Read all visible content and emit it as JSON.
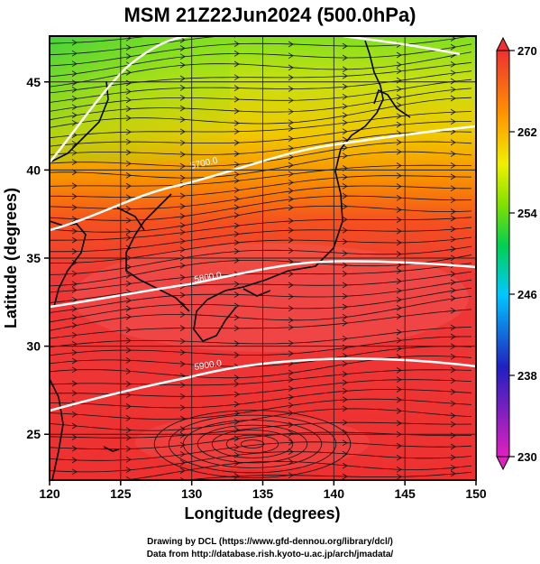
{
  "title": "MSM 21Z22Jun2024 (500.0hPa)",
  "x_axis": {
    "label": "Longitude (degrees)",
    "ticks": [
      "120",
      "125",
      "130",
      "135",
      "140",
      "145",
      "150"
    ],
    "range": [
      120,
      150
    ]
  },
  "y_axis": {
    "label": "Latitude  (degrees)",
    "ticks": [
      "25",
      "30",
      "35",
      "40",
      "45"
    ],
    "range": [
      22.4,
      47.6
    ]
  },
  "colorbar": {
    "ticks": [
      "270",
      "262",
      "254",
      "246",
      "238",
      "230"
    ],
    "range": [
      230,
      270
    ],
    "colors": [
      "#e020c0",
      "#2020c0",
      "#00c8ff",
      "#00d050",
      "#80e000",
      "#f0f000",
      "#ff9000",
      "#f03030"
    ]
  },
  "contours": [
    {
      "label": "5700.0"
    },
    {
      "label": "5800.0"
    },
    {
      "label": "5900.0"
    }
  ],
  "credits": {
    "line1": "Drawing by DCL (https://www.gfd-dennou.org/library/dcl/)",
    "line2": "Data from http://database.rish.kyoto-u.ac.jp/arch/jmadata/"
  }
}
